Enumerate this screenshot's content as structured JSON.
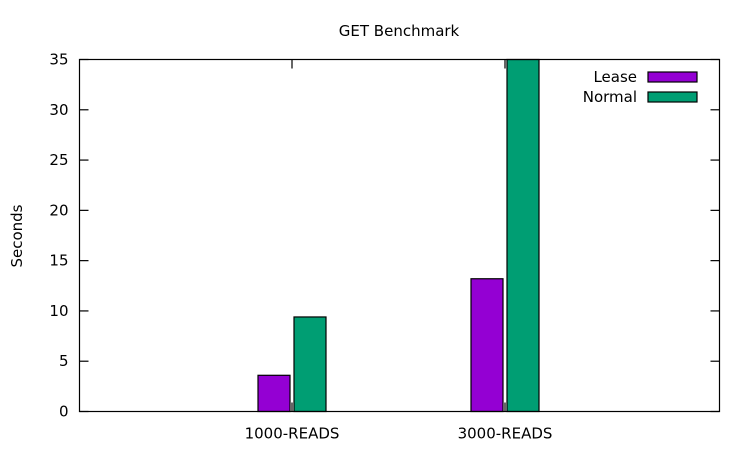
{
  "chart_data": {
    "type": "bar",
    "title": "GET Benchmark",
    "xlabel": "",
    "ylabel": "Seconds",
    "categories": [
      "1000-READS",
      "3000-READS"
    ],
    "series": [
      {
        "name": "Lease",
        "values": [
          3.6,
          13.2
        ],
        "color": "#9400d3"
      },
      {
        "name": "Normal",
        "values": [
          9.4,
          35
        ],
        "color": "#009e73"
      }
    ],
    "ylim": [
      0,
      35
    ],
    "yticks": [
      0,
      5,
      10,
      15,
      20,
      25,
      30,
      35
    ],
    "grid": false,
    "legend_position": "top-right"
  }
}
